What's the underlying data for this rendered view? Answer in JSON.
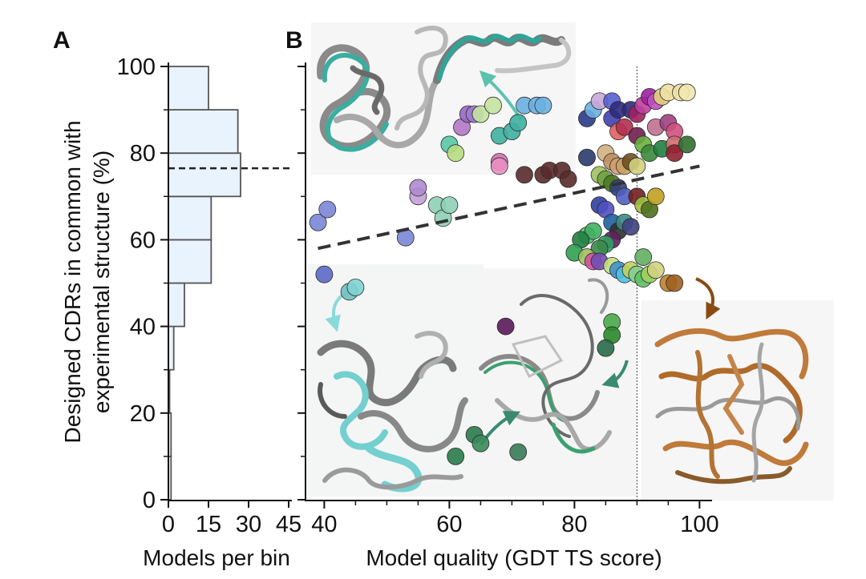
{
  "panels": {
    "a": "A",
    "b": "B"
  },
  "chart_data": [
    {
      "type": "bar",
      "orientation": "horizontal",
      "bins": [
        [
          0,
          10
        ],
        [
          10,
          20
        ],
        [
          20,
          30
        ],
        [
          30,
          40
        ],
        [
          40,
          50
        ],
        [
          50,
          60
        ],
        [
          60,
          70
        ],
        [
          70,
          80
        ],
        [
          80,
          90
        ],
        [
          90,
          100
        ]
      ],
      "values": [
        1,
        1,
        0,
        2,
        6,
        16,
        16,
        27,
        26,
        15
      ],
      "mean_line": 76.5,
      "bar_color": "#e9f3fd",
      "edge_color": "#555555",
      "xlabel": "Models per bin",
      "ylabel": "Designed CDRs in common with experimental structure (%)",
      "ylabel_lines": [
        "Designed CDRs in common with",
        "experimental structure (%)"
      ],
      "xlim": [
        0,
        48
      ],
      "ylim": [
        0,
        100
      ],
      "xticks": [
        "0",
        "15",
        "30",
        "45"
      ],
      "yticks": [
        "0",
        "20",
        "40",
        "60",
        "80",
        "100"
      ]
    },
    {
      "type": "scatter",
      "xlabel": "Model quality (GDT TS score)",
      "ylabel": "",
      "xlim": [
        37,
        102
      ],
      "ylim": [
        0,
        100
      ],
      "xticks": [
        "40",
        "60",
        "80",
        "100"
      ],
      "grid": false,
      "reference_line_x": 90,
      "trend_line": {
        "x": [
          39,
          100
        ],
        "y": [
          58,
          77
        ],
        "style": "dashed",
        "color": "#333333"
      },
      "points": [
        {
          "x": 39,
          "y": 64,
          "c": "#7a86d6"
        },
        {
          "x": 40.5,
          "y": 67,
          "c": "#7a86d6"
        },
        {
          "x": 40,
          "y": 52,
          "c": "#5a6ac8"
        },
        {
          "x": 44,
          "y": 48,
          "c": "#6fc0c0"
        },
        {
          "x": 45,
          "y": 49,
          "c": "#7fd3d3"
        },
        {
          "x": 53,
          "y": 60.5,
          "c": "#7a86d6"
        },
        {
          "x": 55,
          "y": 70,
          "c": "#c4a0d8"
        },
        {
          "x": 55,
          "y": 72,
          "c": "#b08ad0"
        },
        {
          "x": 58,
          "y": 68,
          "c": "#8ed0b6"
        },
        {
          "x": 59,
          "y": 65,
          "c": "#8ed0b6"
        },
        {
          "x": 60,
          "y": 68,
          "c": "#8ed0b6"
        },
        {
          "x": 60,
          "y": 82,
          "c": "#58c8a8"
        },
        {
          "x": 61,
          "y": 80,
          "c": "#b7dd80"
        },
        {
          "x": 62,
          "y": 86,
          "c": "#b478c8"
        },
        {
          "x": 63,
          "y": 89,
          "c": "#9a68c2"
        },
        {
          "x": 64,
          "y": 89,
          "c": "#a07ad0"
        },
        {
          "x": 65,
          "y": 89,
          "c": "#c4e3a0"
        },
        {
          "x": 67,
          "y": 91,
          "c": "#c4e3a0"
        },
        {
          "x": 68,
          "y": 84,
          "c": "#3fb0a0"
        },
        {
          "x": 70,
          "y": 85,
          "c": "#3fb0a0"
        },
        {
          "x": 71,
          "y": 87,
          "c": "#3fb0a0"
        },
        {
          "x": 68,
          "y": 78,
          "c": "#d470b0"
        },
        {
          "x": 68,
          "y": 77,
          "c": "#e890c0"
        },
        {
          "x": 72,
          "y": 91,
          "c": "#6ab0e0"
        },
        {
          "x": 74,
          "y": 91,
          "c": "#6ab0e0"
        },
        {
          "x": 75,
          "y": 91,
          "c": "#6ab0e0"
        },
        {
          "x": 72,
          "y": 75,
          "c": "#5a2a2a"
        },
        {
          "x": 75,
          "y": 75,
          "c": "#5a2a2a"
        },
        {
          "x": 76,
          "y": 76,
          "c": "#5a2a2a"
        },
        {
          "x": 78,
          "y": 76,
          "c": "#5a2a2a"
        },
        {
          "x": 79,
          "y": 74,
          "c": "#5a2a2a"
        },
        {
          "x": 82,
          "y": 79,
          "c": "#2a3a6a"
        },
        {
          "x": 82,
          "y": 88,
          "c": "#2a3a8a"
        },
        {
          "x": 83,
          "y": 90,
          "c": "#6ab0e0"
        },
        {
          "x": 84,
          "y": 92,
          "c": "#c8a8d8"
        },
        {
          "x": 86,
          "y": 92,
          "c": "#5560d0"
        },
        {
          "x": 86,
          "y": 88,
          "c": "#4040b0"
        },
        {
          "x": 87,
          "y": 90,
          "c": "#302a80"
        },
        {
          "x": 89,
          "y": 90,
          "c": "#302a80"
        },
        {
          "x": 90,
          "y": 89,
          "c": "#a02060"
        },
        {
          "x": 91,
          "y": 91,
          "c": "#c040a0"
        },
        {
          "x": 92,
          "y": 93,
          "c": "#a020a0"
        },
        {
          "x": 93,
          "y": 92,
          "c": "#c050c0"
        },
        {
          "x": 94,
          "y": 93,
          "c": "#e0d080"
        },
        {
          "x": 95,
          "y": 94,
          "c": "#f0e0a0"
        },
        {
          "x": 97,
          "y": 94,
          "c": "#f0e0a0"
        },
        {
          "x": 98,
          "y": 94,
          "c": "#f0e8b0"
        },
        {
          "x": 93,
          "y": 86,
          "c": "#c07090"
        },
        {
          "x": 95,
          "y": 87,
          "c": "#a04080"
        },
        {
          "x": 96,
          "y": 85,
          "c": "#d05080"
        },
        {
          "x": 87,
          "y": 85,
          "c": "#e06060"
        },
        {
          "x": 88,
          "y": 86,
          "c": "#b03050"
        },
        {
          "x": 90,
          "y": 84,
          "c": "#702050"
        },
        {
          "x": 91,
          "y": 82,
          "c": "#6ab040"
        },
        {
          "x": 92,
          "y": 80,
          "c": "#3a8a3a"
        },
        {
          "x": 94,
          "y": 81,
          "c": "#208040"
        },
        {
          "x": 96,
          "y": 82,
          "c": "#d07070"
        },
        {
          "x": 96,
          "y": 80,
          "c": "#902030"
        },
        {
          "x": 98,
          "y": 82,
          "c": "#307030"
        },
        {
          "x": 85,
          "y": 80,
          "c": "#d0b080"
        },
        {
          "x": 86,
          "y": 78,
          "c": "#c09060"
        },
        {
          "x": 87,
          "y": 77,
          "c": "#d0a070"
        },
        {
          "x": 88,
          "y": 77,
          "c": "#c8a060"
        },
        {
          "x": 89,
          "y": 78,
          "c": "#705020"
        },
        {
          "x": 90,
          "y": 77,
          "c": "#d0d080"
        },
        {
          "x": 84,
          "y": 75,
          "c": "#a0c060"
        },
        {
          "x": 85,
          "y": 74,
          "c": "#70a040"
        },
        {
          "x": 86,
          "y": 73,
          "c": "#4a7a20"
        },
        {
          "x": 87,
          "y": 72,
          "c": "#304080"
        },
        {
          "x": 88,
          "y": 70,
          "c": "#5060c0"
        },
        {
          "x": 90,
          "y": 70,
          "c": "#702020"
        },
        {
          "x": 91,
          "y": 68,
          "c": "#a0c040"
        },
        {
          "x": 92,
          "y": 67,
          "c": "#507020"
        },
        {
          "x": 93,
          "y": 70,
          "c": "#c0a020"
        },
        {
          "x": 84,
          "y": 68,
          "c": "#3040a0"
        },
        {
          "x": 85,
          "y": 67,
          "c": "#5050c0"
        },
        {
          "x": 86,
          "y": 64,
          "c": "#2060a0"
        },
        {
          "x": 87,
          "y": 62,
          "c": "#303030"
        },
        {
          "x": 88,
          "y": 64,
          "c": "#3a8a8a"
        },
        {
          "x": 89,
          "y": 63,
          "c": "#404080"
        },
        {
          "x": 86,
          "y": 60,
          "c": "#602060"
        },
        {
          "x": 85,
          "y": 59,
          "c": "#30a060"
        },
        {
          "x": 84,
          "y": 58,
          "c": "#3a8a4a"
        },
        {
          "x": 82,
          "y": 61,
          "c": "#50c070"
        },
        {
          "x": 83,
          "y": 62,
          "c": "#40b060"
        },
        {
          "x": 81,
          "y": 60,
          "c": "#208040"
        },
        {
          "x": 80,
          "y": 57,
          "c": "#30a050"
        },
        {
          "x": 82,
          "y": 56,
          "c": "#a0c060"
        },
        {
          "x": 83,
          "y": 55,
          "c": "#d050a0"
        },
        {
          "x": 84,
          "y": 55,
          "c": "#7050b0"
        },
        {
          "x": 86,
          "y": 54,
          "c": "#c0e080"
        },
        {
          "x": 87,
          "y": 53,
          "c": "#4090d0"
        },
        {
          "x": 88,
          "y": 52,
          "c": "#50c0e0"
        },
        {
          "x": 89,
          "y": 53,
          "c": "#c0d060"
        },
        {
          "x": 90,
          "y": 52,
          "c": "#80d090"
        },
        {
          "x": 91,
          "y": 51,
          "c": "#60c060"
        },
        {
          "x": 92,
          "y": 52,
          "c": "#a0d060"
        },
        {
          "x": 93,
          "y": 53,
          "c": "#d0d080"
        },
        {
          "x": 95,
          "y": 50,
          "c": "#c08030"
        },
        {
          "x": 96,
          "y": 50,
          "c": "#a06020"
        },
        {
          "x": 91,
          "y": 56,
          "c": "#60b060"
        },
        {
          "x": 86,
          "y": 41,
          "c": "#4aaa4a"
        },
        {
          "x": 86,
          "y": 38,
          "c": "#2a8a2a"
        },
        {
          "x": 85,
          "y": 35,
          "c": "#2a6a4a"
        },
        {
          "x": 69,
          "y": 40,
          "c": "#5a1a5a"
        },
        {
          "x": 64,
          "y": 15,
          "c": "#2a7a4a"
        },
        {
          "x": 65,
          "y": 13,
          "c": "#3a8a5a"
        },
        {
          "x": 61,
          "y": 10,
          "c": "#2a7a4a"
        },
        {
          "x": 71,
          "y": 11,
          "c": "#3a7a5a"
        }
      ]
    }
  ]
}
